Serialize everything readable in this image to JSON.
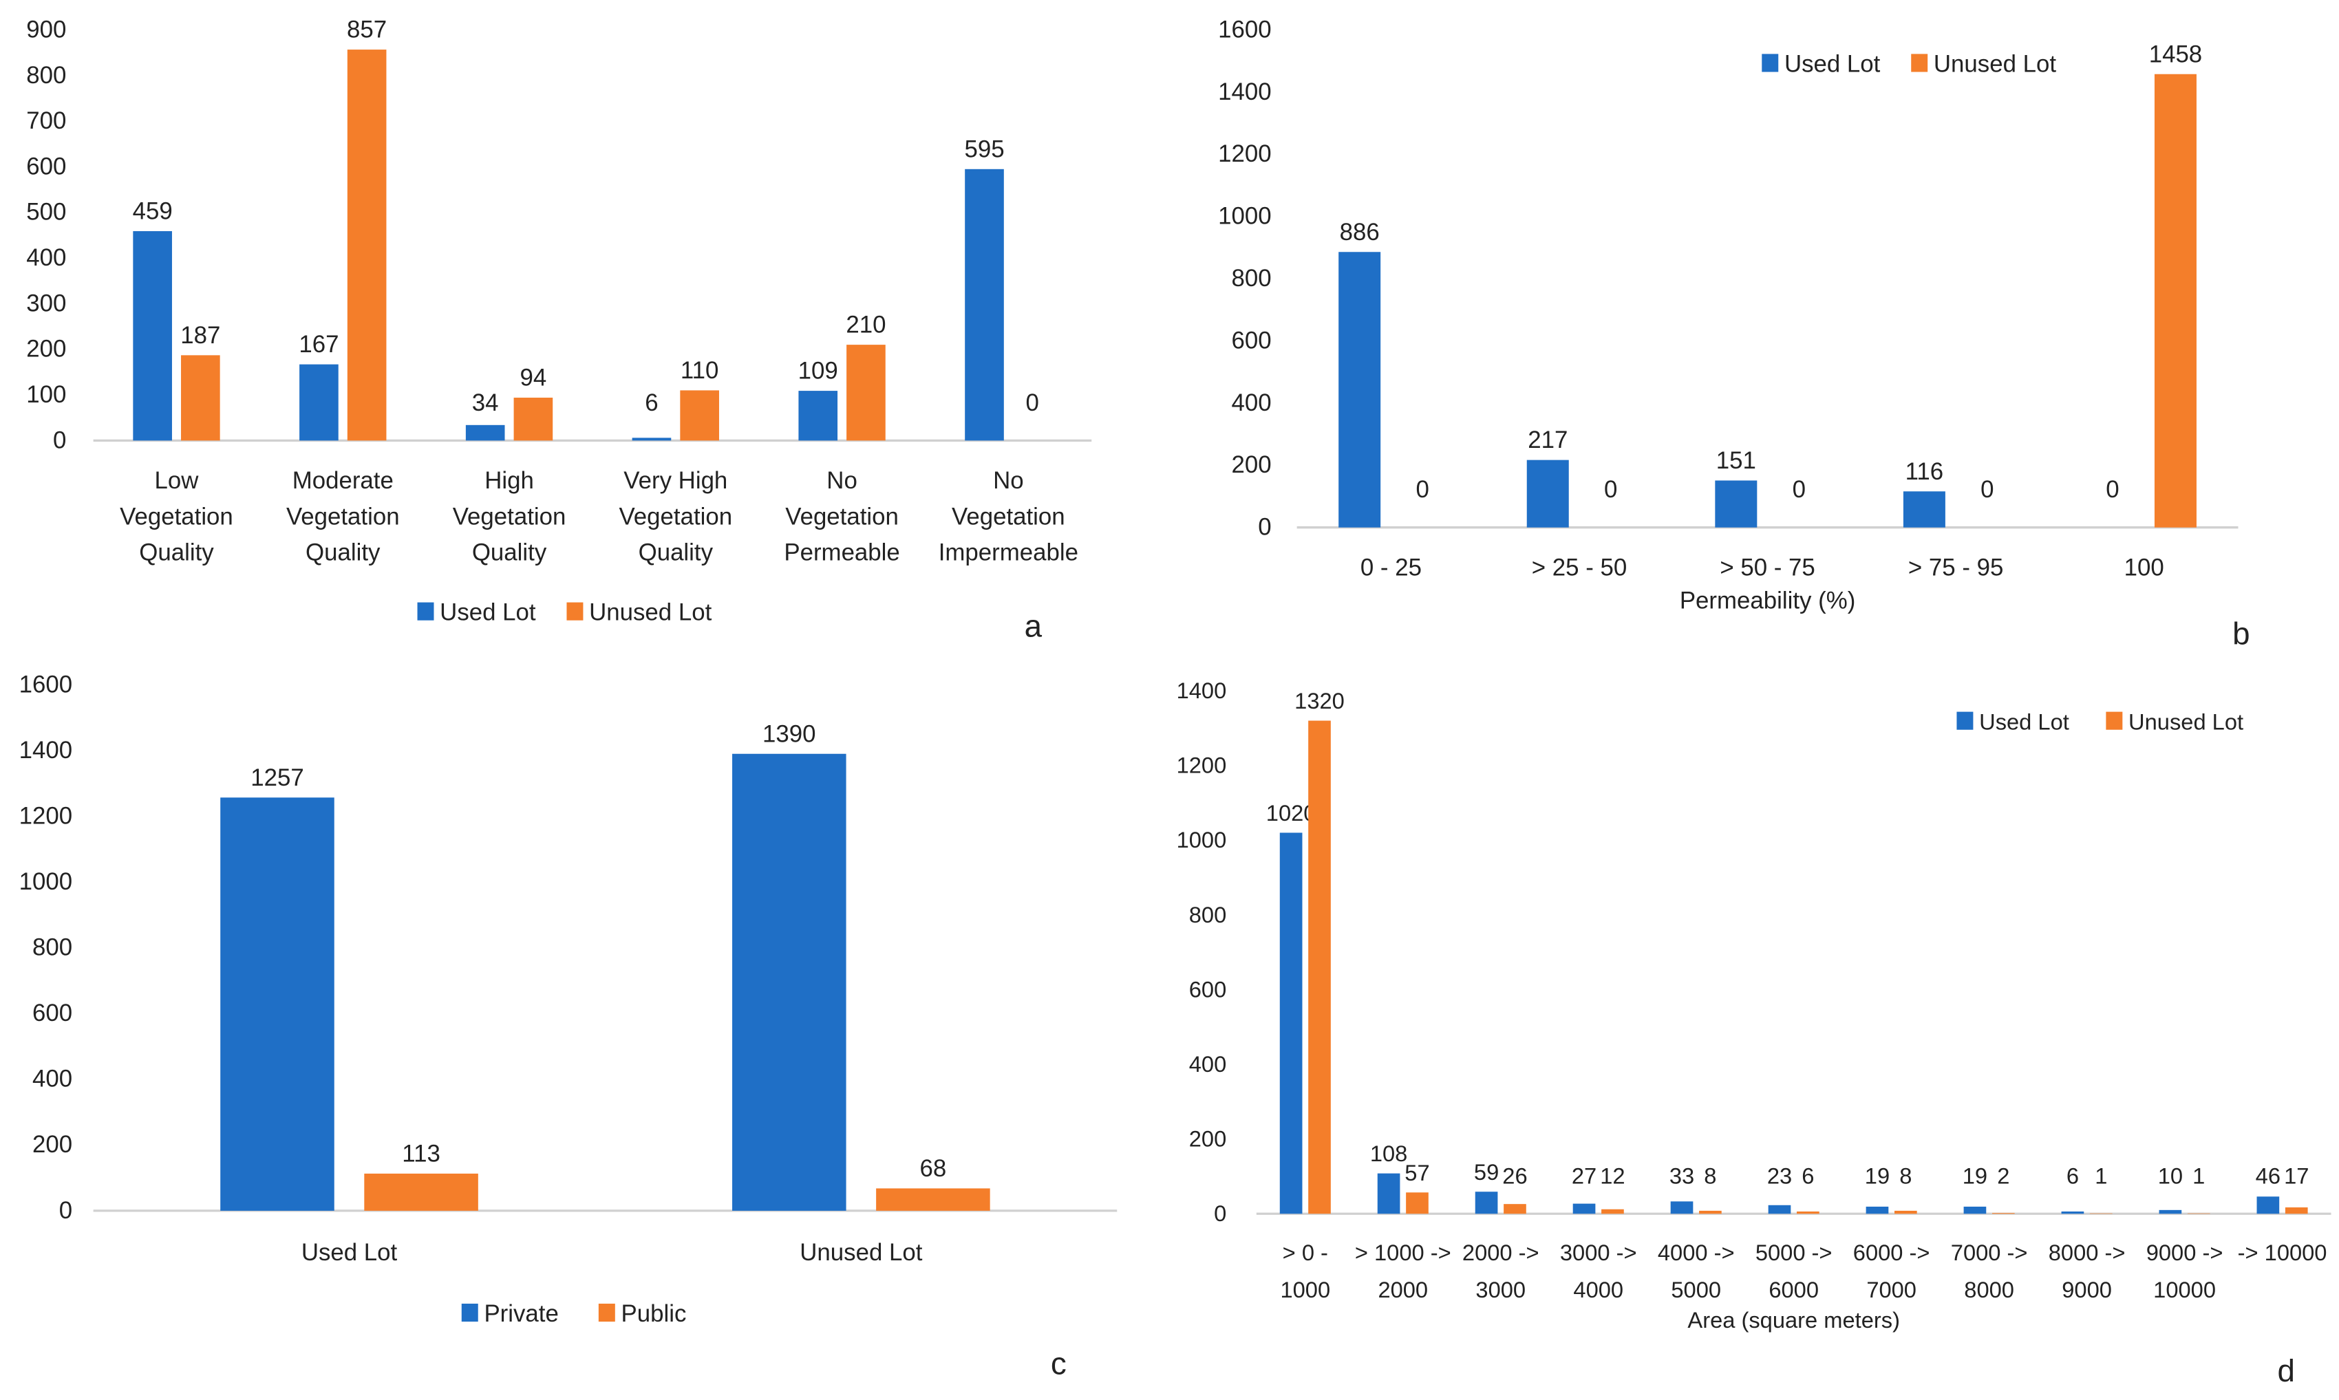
{
  "colors": {
    "blue": "#1f6fc6",
    "orange": "#f47e2a",
    "axis": "#d0d0d0"
  },
  "chart_data": [
    {
      "panel": "a",
      "type": "bar",
      "title": "",
      "xlabel": "",
      "ylabel": "",
      "ylim": [
        0,
        900
      ],
      "yticks": [
        0,
        100,
        200,
        300,
        400,
        500,
        600,
        700,
        800,
        900
      ],
      "categories": [
        [
          "Low",
          "Vegetation",
          "Quality"
        ],
        [
          "Moderate",
          "Vegetation",
          "Quality"
        ],
        [
          "High",
          "Vegetation",
          "Quality"
        ],
        [
          "Very High",
          "Vegetation",
          "Quality"
        ],
        [
          "No",
          "Vegetation",
          "Permeable"
        ],
        [
          "No",
          "Vegetation",
          "Impermeable"
        ]
      ],
      "series": [
        {
          "name": "Used Lot",
          "color": "#1f6fc6",
          "values": [
            459,
            167,
            34,
            6,
            109,
            595
          ]
        },
        {
          "name": "Unused Lot",
          "color": "#f47e2a",
          "values": [
            187,
            857,
            94,
            110,
            210,
            0
          ]
        }
      ],
      "legend": "bottom",
      "grid": false
    },
    {
      "panel": "b",
      "type": "bar",
      "title": "",
      "xlabel": "Permeability (%)",
      "ylabel": "",
      "ylim": [
        0,
        1600
      ],
      "yticks": [
        0,
        200,
        400,
        600,
        800,
        1000,
        1200,
        1400,
        1600
      ],
      "categories": [
        [
          "0 - 25"
        ],
        [
          "> 25 - 50"
        ],
        [
          "> 50 - 75"
        ],
        [
          "> 75 - 95"
        ],
        [
          "100"
        ]
      ],
      "series": [
        {
          "name": "Used Lot",
          "color": "#1f6fc6",
          "values": [
            886,
            217,
            151,
            116,
            0
          ]
        },
        {
          "name": "Unused Lot",
          "color": "#f47e2a",
          "values": [
            0,
            0,
            0,
            0,
            1458
          ]
        }
      ],
      "legend": "top",
      "grid": false
    },
    {
      "panel": "c",
      "type": "bar",
      "title": "",
      "xlabel": "",
      "ylabel": "",
      "ylim": [
        0,
        1600
      ],
      "yticks": [
        0,
        200,
        400,
        600,
        800,
        1000,
        1200,
        1400,
        1600
      ],
      "categories": [
        [
          "Used Lot"
        ],
        [
          "Unused Lot"
        ]
      ],
      "series": [
        {
          "name": "Private",
          "color": "#1f6fc6",
          "values": [
            1257,
            1390
          ]
        },
        {
          "name": "Public",
          "color": "#f47e2a",
          "values": [
            113,
            68
          ]
        }
      ],
      "legend": "bottom",
      "grid": false
    },
    {
      "panel": "d",
      "type": "bar",
      "title": "",
      "xlabel": "Area (square meters)",
      "ylabel": "",
      "ylim": [
        0,
        1400
      ],
      "yticks": [
        0,
        200,
        400,
        600,
        800,
        1000,
        1200,
        1400
      ],
      "categories": [
        [
          "> 0 -",
          "1000"
        ],
        [
          "> 1000 ->",
          "2000"
        ],
        [
          "2000 ->",
          "3000"
        ],
        [
          "3000 ->",
          "4000"
        ],
        [
          "4000 ->",
          "5000"
        ],
        [
          "5000 ->",
          "6000"
        ],
        [
          "6000 ->",
          "7000"
        ],
        [
          "7000 ->",
          "8000"
        ],
        [
          "8000 ->",
          "9000"
        ],
        [
          "9000 ->",
          "10000"
        ],
        [
          "-> 10000"
        ]
      ],
      "series": [
        {
          "name": "Used Lot",
          "color": "#1f6fc6",
          "values": [
            1020,
            108,
            59,
            27,
            33,
            23,
            19,
            19,
            6,
            10,
            46
          ]
        },
        {
          "name": "Unused Lot",
          "color": "#f47e2a",
          "values": [
            1320,
            57,
            26,
            12,
            8,
            6,
            8,
            2,
            1,
            1,
            17
          ]
        }
      ],
      "legend": "top-right",
      "grid": false
    }
  ]
}
